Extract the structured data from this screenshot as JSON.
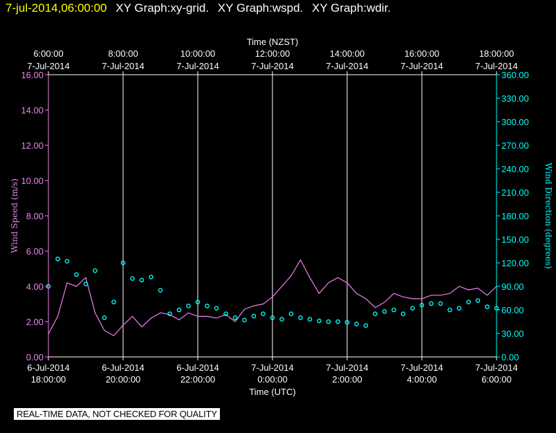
{
  "header": {
    "date": "7-jul-2014,06:00:00",
    "graph_labels": [
      "XY Graph:xy-grid.",
      "XY Graph:wspd.",
      "XY Graph:wdir."
    ]
  },
  "note": "REAL-TIME DATA, NOT CHECKED FOR QUALITY",
  "colors": {
    "wspd": "#ee82ee",
    "wdir": "#00ffff",
    "grid": "#ffffff",
    "note_bg": "#ffffff"
  },
  "chart_data": {
    "type": "line",
    "top_axis": {
      "title": "Time (NZST)",
      "ticks": [
        {
          "time": "6:00:00",
          "date": "7-Jul-2014"
        },
        {
          "time": "8:00:00",
          "date": "7-Jul-2014"
        },
        {
          "time": "10:00:00",
          "date": "7-Jul-2014"
        },
        {
          "time": "12:00:00",
          "date": "7-Jul-2014"
        },
        {
          "time": "14:00:00",
          "date": "7-Jul-2014"
        },
        {
          "time": "16:00:00",
          "date": "7-Jul-2014"
        },
        {
          "time": "18:00:00",
          "date": "7-Jul-2014"
        }
      ]
    },
    "bottom_axis": {
      "title": "Time (UTC)",
      "ticks": [
        {
          "date": "6-Jul-2014",
          "time": "18:00:00"
        },
        {
          "date": "6-Jul-2014",
          "time": "20:00:00"
        },
        {
          "date": "6-Jul-2014",
          "time": "22:00:00"
        },
        {
          "date": "7-Jul-2014",
          "time": "0:00:00"
        },
        {
          "date": "7-Jul-2014",
          "time": "2:00:00"
        },
        {
          "date": "7-Jul-2014",
          "time": "4:00:00"
        },
        {
          "date": "7-Jul-2014",
          "time": "6:00:00"
        }
      ]
    },
    "left_axis": {
      "title": "Wind Speed (m/s)",
      "ylim": [
        0,
        16
      ],
      "ticks": [
        "0.00",
        "2.00",
        "4.00",
        "6.00",
        "8.00",
        "10.00",
        "12.00",
        "14.00",
        "16.00"
      ]
    },
    "right_axis": {
      "title": "Wind Direction (degrees)",
      "ylim": [
        0,
        360
      ],
      "ticks": [
        "0.00",
        "30.00",
        "60.00",
        "90.00",
        "120.00",
        "150.00",
        "180.00",
        "210.00",
        "240.00",
        "270.00",
        "300.00",
        "330.00",
        "360.00"
      ]
    },
    "xlim_hours": [
      0,
      12
    ],
    "vertical_grid": true,
    "series": [
      {
        "key": "wspd",
        "style": "line",
        "axis": "left",
        "points": [
          [
            0.0,
            1.3
          ],
          [
            0.25,
            2.3
          ],
          [
            0.5,
            4.2
          ],
          [
            0.75,
            4.0
          ],
          [
            1.0,
            4.5
          ],
          [
            1.25,
            2.5
          ],
          [
            1.5,
            1.5
          ],
          [
            1.75,
            1.2
          ],
          [
            2.0,
            1.8
          ],
          [
            2.25,
            2.3
          ],
          [
            2.5,
            1.7
          ],
          [
            2.75,
            2.2
          ],
          [
            3.0,
            2.5
          ],
          [
            3.25,
            2.4
          ],
          [
            3.5,
            2.1
          ],
          [
            3.75,
            2.5
          ],
          [
            4.0,
            2.3
          ],
          [
            4.25,
            2.3
          ],
          [
            4.5,
            2.2
          ],
          [
            4.75,
            2.4
          ],
          [
            5.0,
            2.0
          ],
          [
            5.25,
            2.7
          ],
          [
            5.5,
            2.9
          ],
          [
            5.75,
            3.0
          ],
          [
            6.0,
            3.4
          ],
          [
            6.25,
            4.0
          ],
          [
            6.5,
            4.6
          ],
          [
            6.75,
            5.5
          ],
          [
            7.0,
            4.5
          ],
          [
            7.25,
            3.6
          ],
          [
            7.5,
            4.2
          ],
          [
            7.75,
            4.5
          ],
          [
            8.0,
            4.2
          ],
          [
            8.25,
            3.6
          ],
          [
            8.5,
            3.3
          ],
          [
            8.75,
            2.8
          ],
          [
            9.0,
            3.1
          ],
          [
            9.25,
            3.6
          ],
          [
            9.5,
            3.4
          ],
          [
            9.75,
            3.3
          ],
          [
            10.0,
            3.3
          ],
          [
            10.25,
            3.5
          ],
          [
            10.5,
            3.5
          ],
          [
            10.75,
            3.6
          ],
          [
            11.0,
            4.0
          ],
          [
            11.25,
            3.8
          ],
          [
            11.5,
            3.9
          ],
          [
            11.75,
            3.5
          ],
          [
            12.0,
            4.0
          ]
        ]
      },
      {
        "key": "wdir",
        "style": "circles",
        "axis": "right",
        "points": [
          [
            0.0,
            90
          ],
          [
            0.25,
            125
          ],
          [
            0.5,
            122
          ],
          [
            0.75,
            105
          ],
          [
            1.0,
            93
          ],
          [
            1.25,
            110
          ],
          [
            1.5,
            50
          ],
          [
            1.75,
            70
          ],
          [
            2.0,
            120
          ],
          [
            2.25,
            100
          ],
          [
            2.5,
            98
          ],
          [
            2.75,
            102
          ],
          [
            3.0,
            85
          ],
          [
            3.25,
            55
          ],
          [
            3.5,
            60
          ],
          [
            3.75,
            65
          ],
          [
            4.0,
            70
          ],
          [
            4.25,
            65
          ],
          [
            4.5,
            62
          ],
          [
            4.75,
            55
          ],
          [
            5.0,
            50
          ],
          [
            5.25,
            47
          ],
          [
            5.5,
            52
          ],
          [
            5.75,
            55
          ],
          [
            6.0,
            50
          ],
          [
            6.25,
            48
          ],
          [
            6.5,
            55
          ],
          [
            6.75,
            50
          ],
          [
            7.0,
            48
          ],
          [
            7.25,
            46
          ],
          [
            7.5,
            45
          ],
          [
            7.75,
            45
          ],
          [
            8.0,
            44
          ],
          [
            8.25,
            42
          ],
          [
            8.5,
            40
          ],
          [
            8.75,
            55
          ],
          [
            9.0,
            58
          ],
          [
            9.25,
            60
          ],
          [
            9.5,
            55
          ],
          [
            9.75,
            62
          ],
          [
            10.0,
            66
          ],
          [
            10.25,
            68
          ],
          [
            10.5,
            68
          ],
          [
            10.75,
            60
          ],
          [
            11.0,
            62
          ],
          [
            11.25,
            70
          ],
          [
            11.5,
            72
          ],
          [
            11.75,
            64
          ],
          [
            12.0,
            62
          ]
        ]
      }
    ]
  }
}
